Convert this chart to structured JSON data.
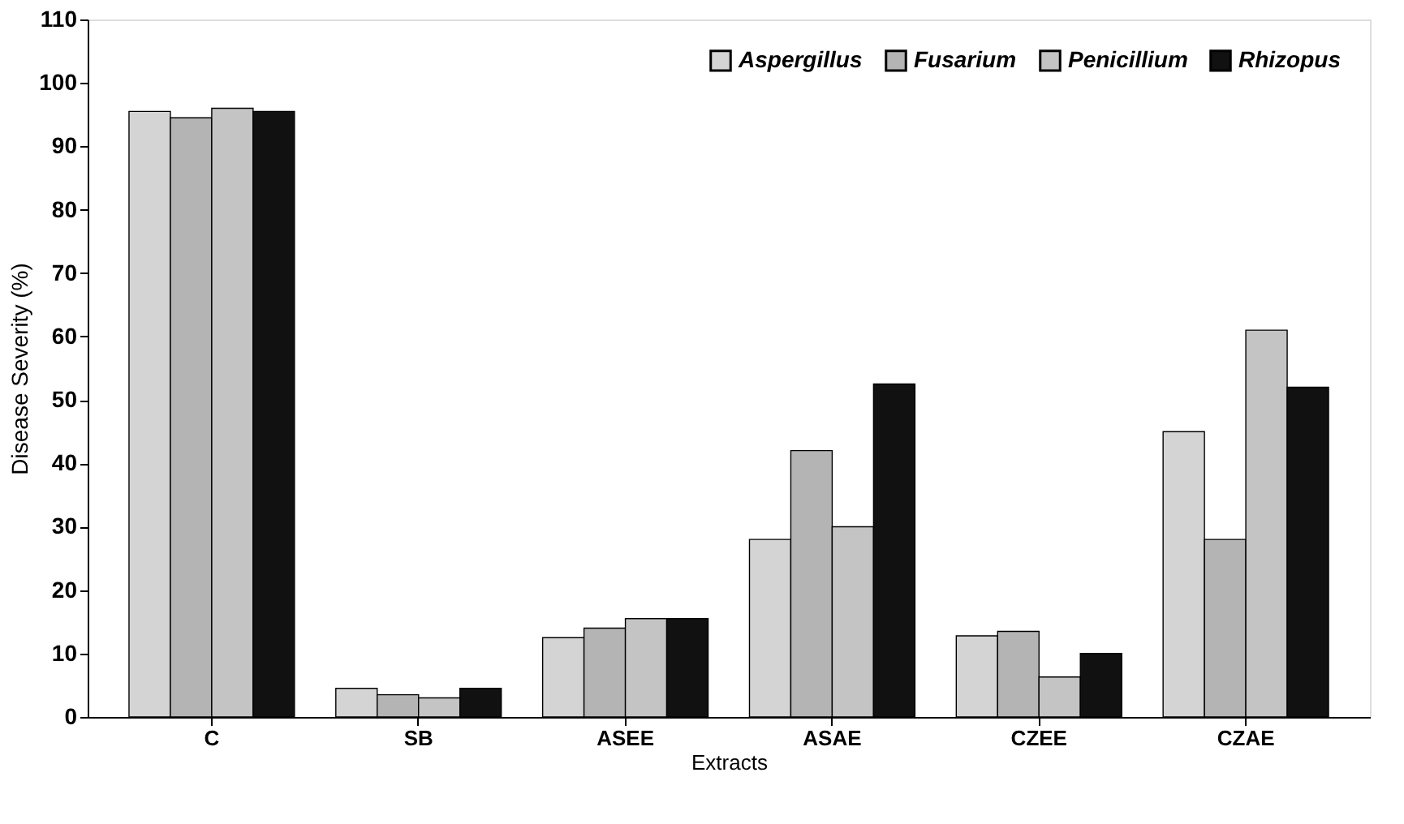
{
  "chart_data": {
    "type": "bar",
    "xlabel": "Extracts",
    "ylabel": "Disease Severity  (%)",
    "categories": [
      "C",
      "SB",
      "ASEE",
      "ASAE",
      "CZEE",
      "CZAE"
    ],
    "series": [
      {
        "name": "Aspergillus",
        "color": "#d4d4d4",
        "values": [
          95.5,
          4.5,
          12.5,
          28,
          12.8,
          45
        ]
      },
      {
        "name": "Fusarium",
        "color": "#b4b4b4",
        "values": [
          94.5,
          3.5,
          14,
          42,
          13.5,
          28
        ]
      },
      {
        "name": "Penicillium",
        "color": "#c4c4c4",
        "values": [
          96,
          3,
          15.5,
          30,
          6.3,
          61
        ]
      },
      {
        "name": "Rhizopus",
        "color": "#111111",
        "values": [
          95.5,
          4.5,
          15.5,
          52.5,
          10,
          52
        ]
      }
    ],
    "ylim": [
      0,
      110
    ],
    "yticks": [
      0,
      10,
      20,
      30,
      40,
      50,
      60,
      70,
      80,
      90,
      100,
      110
    ],
    "grid": false,
    "legend": "top right"
  }
}
